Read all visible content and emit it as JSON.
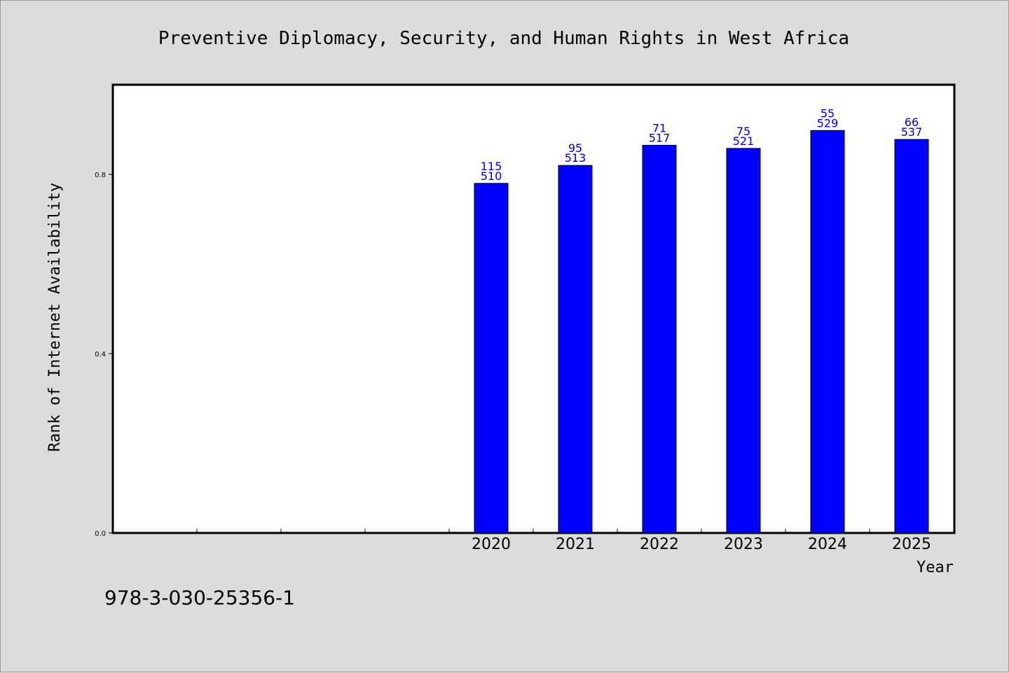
{
  "chart_data": {
    "type": "bar",
    "title": "Preventive Diplomacy, Security, and Human Rights in West Africa",
    "xlabel": "Year",
    "ylabel": "Rank of Internet Availability",
    "categories": [
      "",
      "",
      "",
      "",
      "2020",
      "2021",
      "2022",
      "2023",
      "2024",
      "2025"
    ],
    "values": [
      null,
      null,
      null,
      null,
      0.78,
      0.82,
      0.865,
      0.858,
      0.898,
      0.878
    ],
    "label_top": [
      "",
      "",
      "",
      "",
      "115",
      "95",
      "71",
      "75",
      "55",
      "66"
    ],
    "label_bottom": [
      "",
      "",
      "",
      "",
      "510",
      "513",
      "517",
      "521",
      "529",
      "537"
    ],
    "yticks": [
      "0.0",
      "0.4",
      "0.8"
    ],
    "ylim": [
      0,
      1.0
    ],
    "bar_color": "#0000ff",
    "label_color": "#0000cc"
  },
  "footer": {
    "isbn": "978-3-030-25356-1"
  }
}
